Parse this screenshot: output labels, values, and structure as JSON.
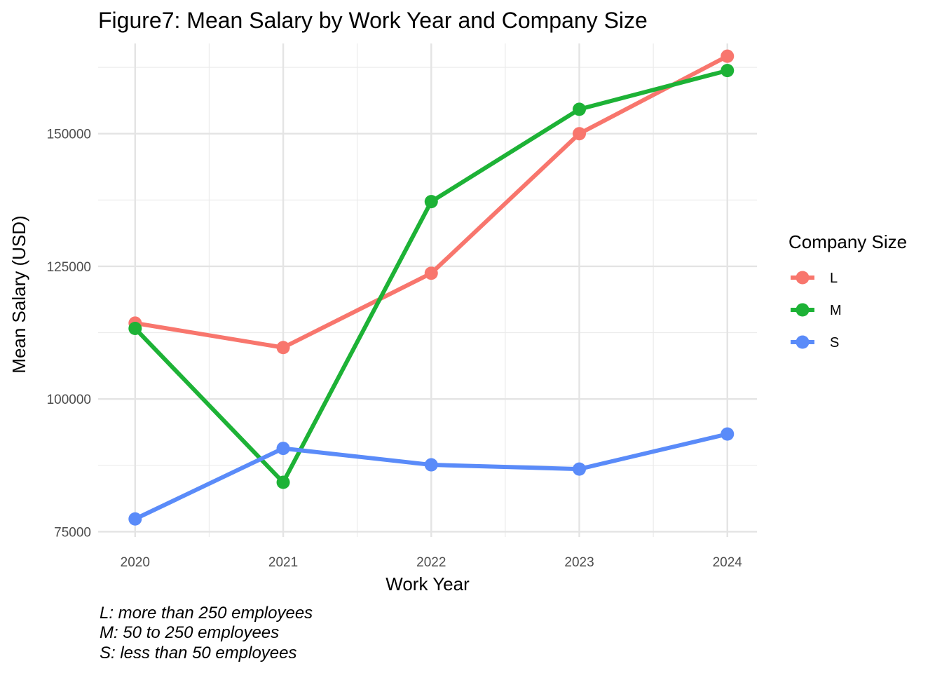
{
  "chart_data": {
    "type": "line",
    "title": "Figure7: Mean Salary by Work Year and Company Size",
    "xlabel": "Work Year",
    "ylabel": "Mean Salary (USD)",
    "x": [
      2020,
      2021,
      2022,
      2023,
      2024
    ],
    "x_tick_labels": [
      "2020",
      "2021",
      "2022",
      "2023",
      "2024"
    ],
    "y_ticks": [
      75000,
      100000,
      125000,
      150000
    ],
    "y_tick_labels": [
      "75000",
      "100000",
      "125000",
      "150000"
    ],
    "ylim": [
      74000,
      167000
    ],
    "xlim": [
      2019.75,
      2024.2
    ],
    "grid": true,
    "legend": {
      "title": "Company Size",
      "position": "right"
    },
    "series": [
      {
        "name": "L",
        "color": "#F8766D",
        "values": [
          114300,
          109700,
          123700,
          150000,
          164600
        ]
      },
      {
        "name": "M",
        "color": "#1DB236",
        "values": [
          113300,
          84300,
          137200,
          154600,
          161900
        ]
      },
      {
        "name": "S",
        "color": "#5A8BF9",
        "values": [
          77400,
          90700,
          87600,
          86800,
          93400
        ]
      }
    ],
    "caption": [
      "L: more than 250 employees",
      "M: 50 to 250 employees",
      "S: less than 50 employees"
    ]
  }
}
